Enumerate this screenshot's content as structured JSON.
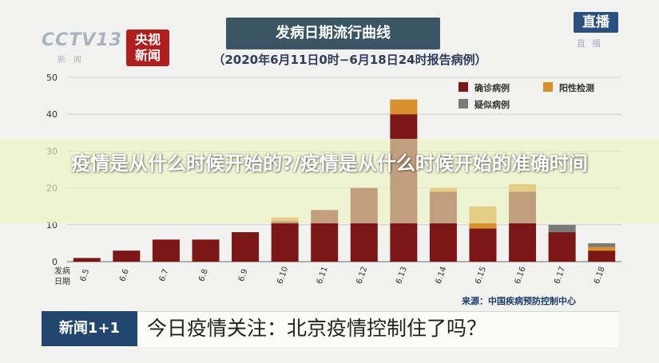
{
  "header": {
    "title": "发病日期流行曲线",
    "subtitle": "（2020年6月11日0时−6月18日24时报告病例）"
  },
  "logos": {
    "cctv": "CCTV13",
    "cctv_sub": "新闻",
    "news": "央视\n新闻",
    "live": "直播",
    "live_sub": "直播"
  },
  "overlay_text": "疫情是从什么时候开始的?/疫情是从什么时候开始的准确时间",
  "source": "来源：中国疾病预防控制中心",
  "ticker": {
    "badge": "新闻1+1",
    "text": "今日疫情关注：北京疫情控制住了吗？"
  },
  "colors": {
    "confirmed": "#7d1616",
    "positive": "#d8902a",
    "suspected": "#7a7a7a"
  },
  "chart_data": {
    "type": "bar",
    "stacked": true,
    "title": "发病日期流行曲线",
    "xlabel": "发病日期",
    "ylabel": "",
    "categories": [
      "6.5",
      "6.6",
      "6.7",
      "6.8",
      "6.9",
      "6.10",
      "6.11",
      "6.12",
      "6.13",
      "6.14",
      "6.15",
      "6.16",
      "6.17",
      "6.18"
    ],
    "ylim": [
      0,
      50
    ],
    "yticks": [
      0,
      10,
      20,
      30,
      40,
      50
    ],
    "grid": true,
    "legend_position": "top-right",
    "series": [
      {
        "name": "确诊病例",
        "color": "#7d1616",
        "values": [
          1,
          3,
          6,
          6,
          8,
          11,
          14,
          20,
          40,
          19,
          9,
          19,
          8,
          3
        ]
      },
      {
        "name": "阳性检测",
        "color": "#d8902a",
        "values": [
          0,
          0,
          0,
          0,
          0,
          1,
          0,
          0,
          4,
          1,
          6,
          2,
          0,
          1
        ]
      },
      {
        "name": "疑似病例",
        "color": "#7a7a7a",
        "values": [
          0,
          0,
          0,
          0,
          0,
          0,
          0,
          0,
          0,
          0,
          0,
          0,
          2,
          1
        ]
      }
    ]
  }
}
